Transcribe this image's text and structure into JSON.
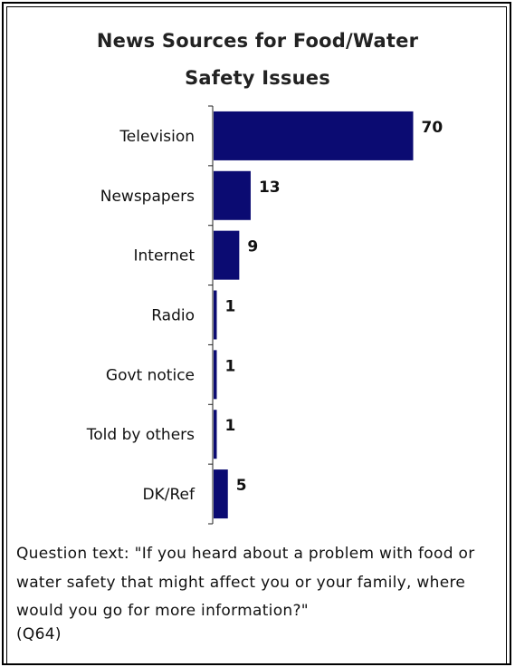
{
  "chart_data": {
    "type": "bar",
    "orientation": "horizontal",
    "title_lines": [
      "News Sources for Food/Water",
      "Safety Issues"
    ],
    "categories": [
      "Television",
      "Newspapers",
      "Internet",
      "Radio",
      "Govt notice",
      "Told by others",
      "DK/Ref"
    ],
    "values": [
      70,
      13,
      9,
      1,
      1,
      1,
      5
    ],
    "value_labels": [
      "70",
      "13",
      "9",
      "1",
      "1",
      "1",
      "5"
    ],
    "xlim": [
      0,
      100
    ],
    "grid": false,
    "legend": "none",
    "bar_color": "#0b0b72"
  },
  "note": {
    "text": "Question text: \"If you heard about a problem with food or water safety that might affect you or your family, where would you go for more information?\"",
    "ref": "(Q64)"
  }
}
